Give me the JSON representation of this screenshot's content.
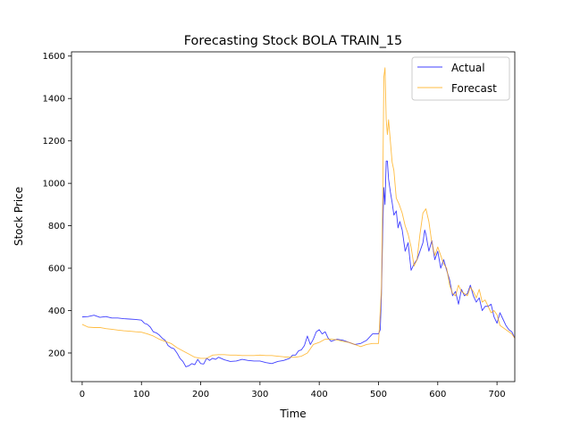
{
  "chart_data": {
    "type": "line",
    "title": "Forecasting Stock BOLA TRAIN_15",
    "xlabel": "Time",
    "ylabel": "Stock Price",
    "xlim": [
      -18,
      730
    ],
    "ylim": [
      65,
      1620
    ],
    "xticks": [
      0,
      100,
      200,
      300,
      400,
      500,
      600,
      700
    ],
    "yticks": [
      200,
      400,
      600,
      800,
      1000,
      1200,
      1400,
      1600
    ],
    "grid": false,
    "legend_position": "top-right",
    "colors": {
      "actual": "#0000ff",
      "forecast": "#ffa500"
    },
    "series": [
      {
        "name": "Actual",
        "color": "#0000ff",
        "x": [
          0,
          10,
          20,
          30,
          40,
          50,
          60,
          70,
          80,
          90,
          100,
          105,
          110,
          115,
          120,
          125,
          130,
          135,
          140,
          145,
          150,
          155,
          160,
          165,
          170,
          175,
          180,
          185,
          190,
          195,
          200,
          205,
          210,
          215,
          220,
          225,
          230,
          240,
          250,
          260,
          270,
          280,
          290,
          300,
          310,
          320,
          330,
          340,
          350,
          355,
          360,
          365,
          370,
          375,
          380,
          385,
          390,
          395,
          400,
          405,
          410,
          415,
          420,
          430,
          440,
          450,
          460,
          470,
          480,
          490,
          500,
          503,
          505,
          507,
          509,
          511,
          513,
          515,
          517,
          520,
          523,
          526,
          530,
          533,
          536,
          540,
          545,
          550,
          555,
          560,
          565,
          570,
          575,
          578,
          580,
          585,
          590,
          595,
          600,
          605,
          610,
          615,
          620,
          625,
          630,
          635,
          640,
          645,
          650,
          655,
          660,
          665,
          670,
          675,
          680,
          685,
          690,
          695,
          700,
          705,
          710,
          715,
          720,
          725,
          730
        ],
        "y": [
          370,
          372,
          378,
          368,
          372,
          365,
          365,
          362,
          360,
          358,
          355,
          340,
          335,
          322,
          300,
          295,
          285,
          270,
          260,
          235,
          225,
          220,
          200,
          175,
          160,
          135,
          140,
          150,
          145,
          170,
          150,
          148,
          175,
          165,
          175,
          170,
          180,
          168,
          160,
          162,
          170,
          165,
          162,
          162,
          155,
          150,
          160,
          165,
          175,
          190,
          190,
          210,
          215,
          235,
          280,
          240,
          265,
          300,
          310,
          290,
          300,
          270,
          255,
          265,
          260,
          250,
          240,
          245,
          260,
          290,
          290,
          310,
          480,
          760,
          980,
          900,
          1105,
          1105,
          1020,
          960,
          910,
          850,
          870,
          790,
          820,
          780,
          680,
          720,
          590,
          620,
          640,
          680,
          720,
          780,
          760,
          680,
          730,
          640,
          680,
          600,
          640,
          590,
          545,
          470,
          490,
          430,
          500,
          470,
          480,
          520,
          470,
          440,
          460,
          400,
          420,
          420,
          430,
          370,
          340,
          390,
          360,
          330,
          310,
          300,
          270
        ]
      },
      {
        "name": "Forecast",
        "color": "#ffa500",
        "x": [
          0,
          10,
          20,
          30,
          40,
          50,
          60,
          70,
          80,
          90,
          100,
          110,
          120,
          130,
          140,
          150,
          160,
          170,
          180,
          190,
          200,
          210,
          220,
          230,
          240,
          250,
          260,
          270,
          280,
          290,
          300,
          310,
          320,
          330,
          340,
          350,
          360,
          370,
          380,
          390,
          400,
          410,
          420,
          430,
          440,
          450,
          460,
          470,
          480,
          490,
          500,
          505,
          507,
          509,
          511,
          513,
          515,
          517,
          520,
          523,
          526,
          530,
          535,
          540,
          545,
          550,
          555,
          560,
          565,
          570,
          575,
          580,
          585,
          590,
          595,
          600,
          605,
          610,
          615,
          620,
          625,
          630,
          635,
          640,
          645,
          650,
          655,
          660,
          665,
          670,
          675,
          680,
          685,
          690,
          695,
          700,
          705,
          710,
          715,
          720,
          725,
          730
        ],
        "y": [
          335,
          322,
          320,
          320,
          315,
          312,
          308,
          305,
          303,
          300,
          298,
          290,
          280,
          265,
          255,
          245,
          225,
          210,
          195,
          180,
          175,
          175,
          190,
          192,
          192,
          190,
          190,
          188,
          188,
          188,
          190,
          188,
          188,
          185,
          182,
          180,
          180,
          185,
          200,
          240,
          250,
          265,
          265,
          262,
          255,
          250,
          240,
          230,
          240,
          245,
          245,
          500,
          900,
          1500,
          1545,
          1300,
          1230,
          1300,
          1200,
          1100,
          1060,
          930,
          900,
          860,
          800,
          760,
          700,
          610,
          640,
          760,
          860,
          880,
          820,
          720,
          660,
          700,
          660,
          620,
          600,
          520,
          480,
          470,
          520,
          490,
          480,
          470,
          510,
          490,
          460,
          500,
          440,
          450,
          420,
          390,
          400,
          380,
          330,
          320,
          310,
          300,
          290,
          270
        ]
      }
    ]
  }
}
